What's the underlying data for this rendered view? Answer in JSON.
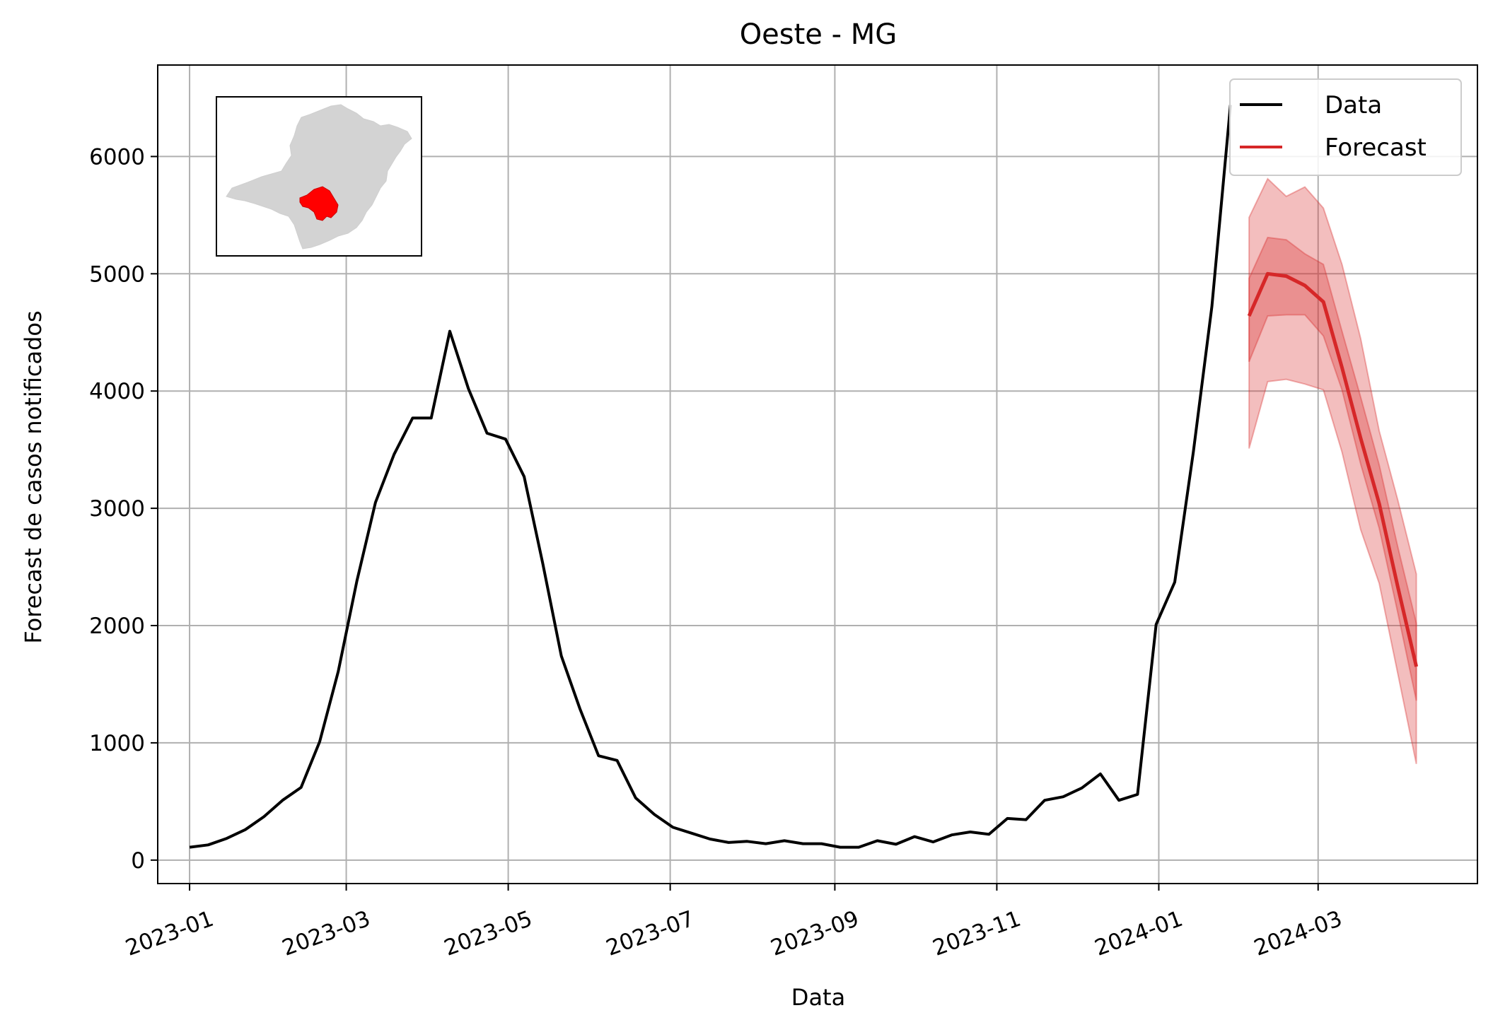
{
  "chart_data": {
    "type": "line",
    "title": "Oeste - MG",
    "xlabel": "Data",
    "ylabel": "Forecast de casos notificados",
    "xlim": [
      "2022-12-20",
      "2024-04-30"
    ],
    "ylim": [
      -200,
      6780
    ],
    "grid": true,
    "legend_position": "top-right",
    "x_ticks": [
      "2023-01-01",
      "2023-03-01",
      "2023-05-01",
      "2023-07-01",
      "2023-09-01",
      "2023-11-01",
      "2024-01-01",
      "2024-03-01"
    ],
    "x_tick_labels": [
      "2023-01",
      "2023-03",
      "2023-05",
      "2023-07",
      "2023-09",
      "2023-11",
      "2024-01",
      "2024-03"
    ],
    "y_ticks": [
      0,
      1000,
      2000,
      3000,
      4000,
      5000,
      6000
    ],
    "y_tick_labels": [
      "0",
      "1000",
      "2000",
      "3000",
      "4000",
      "5000",
      "6000"
    ],
    "series": [
      {
        "name": "Data",
        "color": "#000000",
        "points": [
          [
            "2023-01-01",
            110
          ],
          [
            "2023-01-08",
            130
          ],
          [
            "2023-01-15",
            185
          ],
          [
            "2023-01-22",
            260
          ],
          [
            "2023-01-29",
            370
          ],
          [
            "2023-02-05",
            510
          ],
          [
            "2023-02-12",
            620
          ],
          [
            "2023-02-19",
            1010
          ],
          [
            "2023-02-26",
            1610
          ],
          [
            "2023-03-05",
            2380
          ],
          [
            "2023-03-12",
            3050
          ],
          [
            "2023-03-19",
            3460
          ],
          [
            "2023-03-26",
            3770
          ],
          [
            "2023-04-02",
            3770
          ],
          [
            "2023-04-09",
            4510
          ],
          [
            "2023-04-16",
            4020
          ],
          [
            "2023-04-23",
            3640
          ],
          [
            "2023-04-30",
            3590
          ],
          [
            "2023-05-07",
            3270
          ],
          [
            "2023-05-14",
            2530
          ],
          [
            "2023-05-21",
            1740
          ],
          [
            "2023-05-28",
            1290
          ],
          [
            "2023-06-04",
            890
          ],
          [
            "2023-06-11",
            850
          ],
          [
            "2023-06-18",
            530
          ],
          [
            "2023-06-25",
            390
          ],
          [
            "2023-07-02",
            280
          ],
          [
            "2023-07-09",
            230
          ],
          [
            "2023-07-16",
            180
          ],
          [
            "2023-07-23",
            150
          ],
          [
            "2023-07-30",
            160
          ],
          [
            "2023-08-06",
            140
          ],
          [
            "2023-08-13",
            165
          ],
          [
            "2023-08-20",
            140
          ],
          [
            "2023-08-27",
            140
          ],
          [
            "2023-09-03",
            110
          ],
          [
            "2023-09-10",
            110
          ],
          [
            "2023-09-17",
            165
          ],
          [
            "2023-09-24",
            135
          ],
          [
            "2023-10-01",
            200
          ],
          [
            "2023-10-08",
            155
          ],
          [
            "2023-10-15",
            215
          ],
          [
            "2023-10-22",
            240
          ],
          [
            "2023-10-29",
            220
          ],
          [
            "2023-11-05",
            355
          ],
          [
            "2023-11-12",
            345
          ],
          [
            "2023-11-19",
            510
          ],
          [
            "2023-11-26",
            540
          ],
          [
            "2023-12-03",
            615
          ],
          [
            "2023-12-10",
            735
          ],
          [
            "2023-12-17",
            510
          ],
          [
            "2023-12-24",
            560
          ],
          [
            "2023-12-31",
            2010
          ],
          [
            "2024-01-07",
            2370
          ],
          [
            "2024-01-14",
            3480
          ],
          [
            "2024-01-21",
            4720
          ],
          [
            "2024-01-28",
            6440
          ]
        ]
      },
      {
        "name": "Forecast",
        "color": "#d62728",
        "points": [
          [
            "2024-02-04",
            4640
          ],
          [
            "2024-02-11",
            5000
          ],
          [
            "2024-02-18",
            4980
          ],
          [
            "2024-02-25",
            4900
          ],
          [
            "2024-03-03",
            4760
          ],
          [
            "2024-03-10",
            4200
          ],
          [
            "2024-03-17",
            3600
          ],
          [
            "2024-03-24",
            3040
          ],
          [
            "2024-03-31",
            2330
          ],
          [
            "2024-04-07",
            1650
          ]
        ],
        "band_inner": [
          [
            4250,
            4960
          ],
          [
            4640,
            5310
          ],
          [
            4650,
            5290
          ],
          [
            4650,
            5170
          ],
          [
            4470,
            5080
          ],
          [
            4010,
            4510
          ],
          [
            3380,
            3950
          ],
          [
            2830,
            3370
          ],
          [
            2110,
            2670
          ],
          [
            1360,
            2020
          ]
        ],
        "band_outer": [
          [
            3510,
            5480
          ],
          [
            4080,
            5810
          ],
          [
            4100,
            5660
          ],
          [
            4060,
            5740
          ],
          [
            4010,
            5560
          ],
          [
            3480,
            5080
          ],
          [
            2820,
            4450
          ],
          [
            2360,
            3660
          ],
          [
            1590,
            3070
          ],
          [
            820,
            2440
          ]
        ]
      }
    ]
  }
}
